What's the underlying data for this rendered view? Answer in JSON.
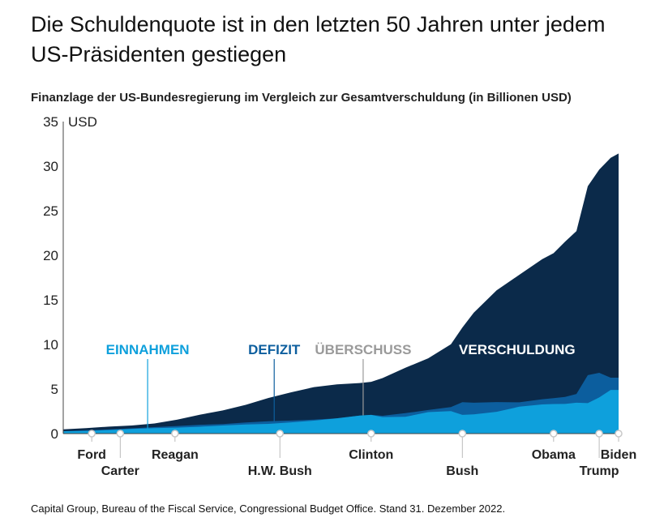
{
  "title": "Die Schuldenquote ist in den letzten 50 Jahren unter jedem US-Präsidenten gestiegen",
  "subtitle": "Finanzlage der US-Bundesregierung im Vergleich zur Gesamtverschuldung (in Billionen USD)",
  "source": "Capital Group, Bureau of the Fiscal Service, Congressional Budget Office. Stand 31. Dezember 2022.",
  "colors": {
    "debt": "#0b2a4a",
    "deficit": "#0c5e9e",
    "revenue": "#0ea0dc",
    "surplus": "#9a9a9a",
    "axis": "#444444"
  },
  "chart_data": {
    "type": "area",
    "ylabel": "USD",
    "ylim": [
      0,
      35
    ],
    "yticks": [
      0,
      5,
      10,
      15,
      20,
      25,
      30,
      35
    ],
    "xlim": [
      1974,
      2022.7
    ],
    "x": [
      1974,
      1976,
      1978,
      1980,
      1982,
      1984,
      1986,
      1988,
      1990,
      1992,
      1994,
      1996,
      1998,
      2000,
      2001,
      2002,
      2004,
      2006,
      2008,
      2009,
      2010,
      2012,
      2014,
      2016,
      2017,
      2018,
      2019,
      2020,
      2021,
      2022,
      2022.7
    ],
    "series": [
      {
        "name": "VERSCHULDUNG",
        "color_key": "debt",
        "values": [
          0.48,
          0.62,
          0.78,
          0.91,
          1.14,
          1.57,
          2.13,
          2.6,
          3.23,
          4.0,
          4.64,
          5.22,
          5.53,
          5.67,
          5.81,
          6.23,
          7.38,
          8.45,
          10.02,
          11.9,
          13.56,
          16.07,
          17.82,
          19.57,
          20.24,
          21.52,
          22.72,
          27.75,
          29.62,
          30.93,
          31.42
        ]
      },
      {
        "name": "DEFIZIT",
        "color_key": "deficit",
        "values": [
          0.27,
          0.37,
          0.46,
          0.59,
          0.73,
          0.85,
          0.99,
          1.06,
          1.25,
          1.38,
          1.46,
          1.56,
          1.72,
          2.03,
          2.1,
          2.0,
          2.29,
          2.65,
          2.98,
          3.52,
          3.46,
          3.54,
          3.51,
          3.85,
          3.98,
          4.11,
          4.45,
          6.55,
          6.82,
          6.27,
          6.27
        ]
      },
      {
        "name": "EINNAHMEN",
        "color_key": "revenue",
        "values": [
          0.26,
          0.3,
          0.4,
          0.52,
          0.62,
          0.67,
          0.77,
          0.91,
          1.03,
          1.09,
          1.26,
          1.45,
          1.72,
          2.03,
          2.1,
          1.85,
          1.88,
          2.41,
          2.52,
          2.1,
          2.16,
          2.45,
          3.02,
          3.27,
          3.32,
          3.33,
          3.46,
          3.42,
          4.05,
          4.9,
          4.9
        ]
      }
    ],
    "annotations": [
      {
        "text": "EINNAHMEN",
        "color_key": "revenue",
        "x": 1981.4,
        "point_y": 0.55
      },
      {
        "text": "DEFIZIT",
        "color_key": "deficit",
        "x": 1992.5,
        "point_y": 1.3
      },
      {
        "text": "ÜBERSCHUSS",
        "color_key": "surplus",
        "x": 2000.3,
        "point_y": 2.05
      },
      {
        "text": "VERSCHULDUNG",
        "color_key": "white",
        "x": 2013.8,
        "point_y": null
      }
    ],
    "presidents": [
      {
        "name": "Ford",
        "x": 1976.5,
        "row": 1
      },
      {
        "name": "Carter",
        "x": 1979.0,
        "row": 2
      },
      {
        "name": "Reagan",
        "x": 1983.8,
        "row": 1
      },
      {
        "name": "H.W. Bush",
        "x": 1993.0,
        "row": 2
      },
      {
        "name": "Clinton",
        "x": 2001.0,
        "row": 1
      },
      {
        "name": "Bush",
        "x": 2009.0,
        "row": 2
      },
      {
        "name": "Obama",
        "x": 2017.0,
        "row": 1
      },
      {
        "name": "Trump",
        "x": 2021.0,
        "row": 2
      },
      {
        "name": "Biden",
        "x": 2022.7,
        "row": 1
      }
    ]
  }
}
